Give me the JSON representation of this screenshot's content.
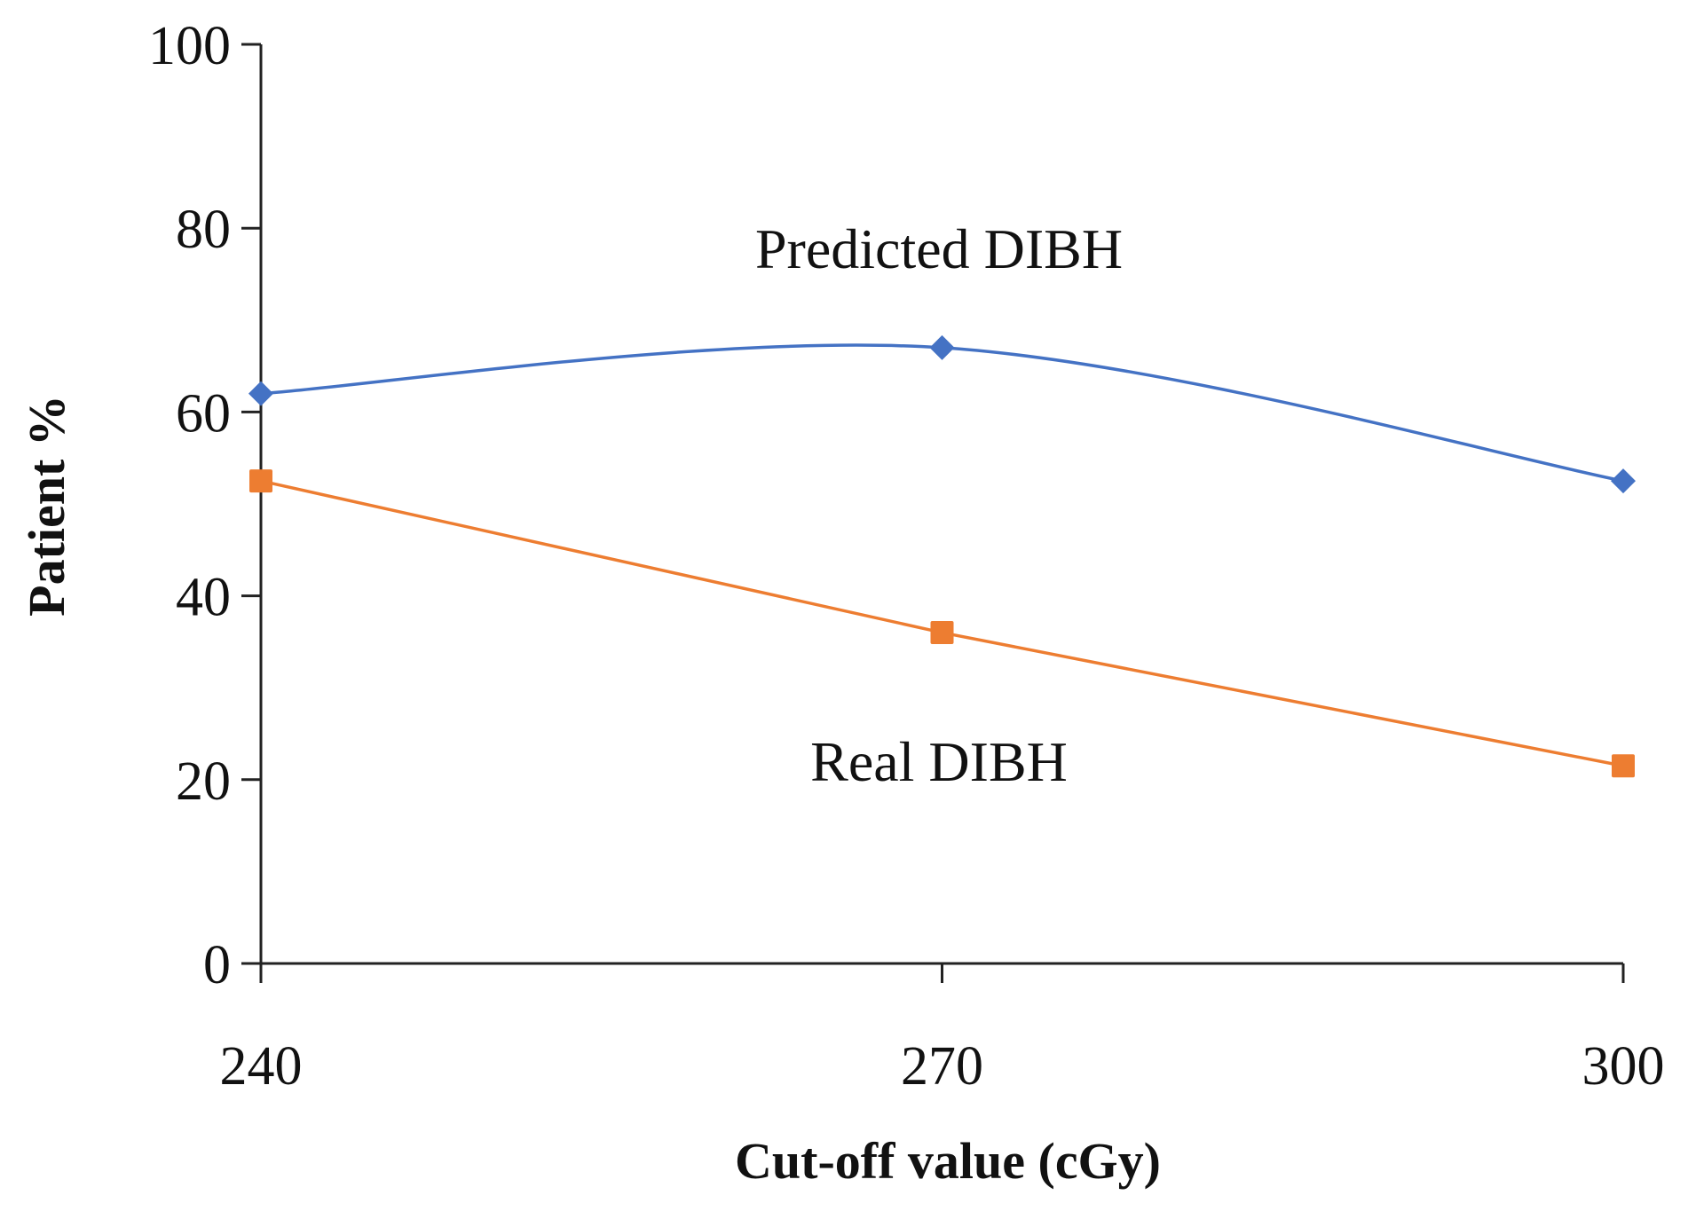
{
  "chart_data": {
    "type": "line",
    "title": "",
    "xlabel": "Cut-off value (cGy)",
    "ylabel": "Patient %",
    "x": [
      240,
      270,
      300
    ],
    "xlim": [
      240,
      300
    ],
    "ylim": [
      0,
      100
    ],
    "yticks": [
      0,
      20,
      40,
      60,
      80,
      100
    ],
    "xticks": [
      240,
      270,
      300
    ],
    "grid": false,
    "legend": "none (inline labels)",
    "series": [
      {
        "name": "Predicted DIBH",
        "values": [
          62,
          67,
          52.5
        ],
        "color": "#4472C4",
        "marker": "diamond",
        "smooth": true
      },
      {
        "name": "Real DIBH",
        "values": [
          52.5,
          36,
          21.5
        ],
        "color": "#ED7D31",
        "marker": "square",
        "smooth": false
      }
    ]
  }
}
